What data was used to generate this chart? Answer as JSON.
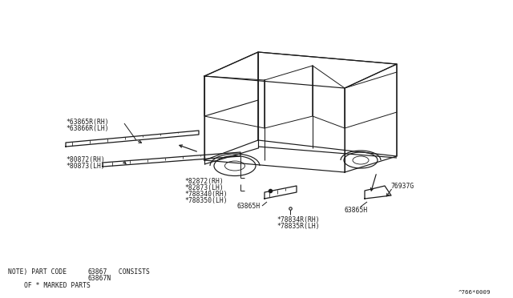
{
  "background_color": "#ffffff",
  "line_color": "#1a1a1a",
  "fig_width": 6.4,
  "fig_height": 3.72,
  "dpi": 100,
  "font_size": 5.8,
  "labels": {
    "l1a": "*63865R(RH)",
    "l1b": "*63866R(LH)",
    "l2a": "*80872(RH)",
    "l2b": "*80873(LH)",
    "l3a": "*82872(RH)",
    "l3b": "*82873(LH)",
    "l4a": "*788340(RH)",
    "l4b": "*788350(LH)",
    "l5": "76937G",
    "l6a": "63865H",
    "l6b": "63865H",
    "l7a": "*78834R(RH)",
    "l7b": "*78835R(LH)",
    "note1": "NOTE) PART CODE ",
    "note2": "63867",
    "note3": " CONSISTS",
    "note4": "63867N",
    "note5": "OF * MARKED PARTS",
    "watermark": "^766*0009"
  }
}
